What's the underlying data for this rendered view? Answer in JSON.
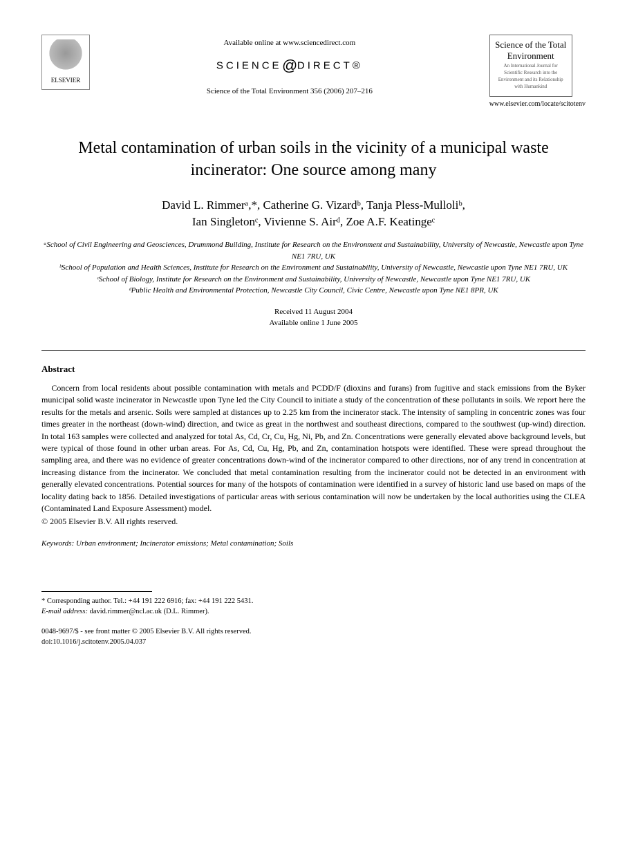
{
  "header": {
    "publisher_name": "ELSEVIER",
    "available_online": "Available online at www.sciencedirect.com",
    "sciencedirect_prefix": "SCIENCE",
    "sciencedirect_suffix": "DIRECT®",
    "journal_reference": "Science of the Total Environment 356 (2006) 207–216",
    "journal_cover_title": "Science of the Total Environment",
    "journal_cover_subtitle": "An International Journal for Scientific Research into the Environment and its Relationship with Humankind",
    "journal_url": "www.elsevier.com/locate/scitotenv"
  },
  "title": "Metal contamination of urban soils in the vicinity of a municipal waste incinerator: One source among many",
  "authors_line1": "David L. Rimmerᵃ,*, Catherine G. Vizardᵇ, Tanja Pless-Mulloliᵇ,",
  "authors_line2": "Ian Singletonᶜ, Vivienne S. Airᵈ, Zoe A.F. Keatingeᶜ",
  "affiliations": {
    "a": "ᵃSchool of Civil Engineering and Geosciences, Drummond Building, Institute for Research on the Environment and Sustainability, University of Newcastle, Newcastle upon Tyne NE1 7RU, UK",
    "b": "ᵇSchool of Population and Health Sciences, Institute for Research on the Environment and Sustainability, University of Newcastle, Newcastle upon Tyne NE1 7RU, UK",
    "c": "ᶜSchool of Biology, Institute for Research on the Environment and Sustainability, University of Newcastle, Newcastle upon Tyne NE1 7RU, UK",
    "d": "ᵈPublic Health and Environmental Protection, Newcastle City Council, Civic Centre, Newcastle upon Tyne NE1 8PR, UK"
  },
  "dates": {
    "received": "Received 11 August 2004",
    "online": "Available online 1 June 2005"
  },
  "abstract": {
    "heading": "Abstract",
    "text": "Concern from local residents about possible contamination with metals and PCDD/F (dioxins and furans) from fugitive and stack emissions from the Byker municipal solid waste incinerator in Newcastle upon Tyne led the City Council to initiate a study of the concentration of these pollutants in soils. We report here the results for the metals and arsenic. Soils were sampled at distances up to 2.25 km from the incinerator stack. The intensity of sampling in concentric zones was four times greater in the northeast (down-wind) direction, and twice as great in the northwest and southeast directions, compared to the southwest (up-wind) direction. In total 163 samples were collected and analyzed for total As, Cd, Cr, Cu, Hg, Ni, Pb, and Zn. Concentrations were generally elevated above background levels, but were typical of those found in other urban areas. For As, Cd, Cu, Hg, Pb, and Zn, contamination hotspots were identified. These were spread throughout the sampling area, and there was no evidence of greater concentrations down-wind of the incinerator compared to other directions, nor of any trend in concentration at increasing distance from the incinerator. We concluded that metal contamination resulting from the incinerator could not be detected in an environment with generally elevated concentrations. Potential sources for many of the hotspots of contamination were identified in a survey of historic land use based on maps of the locality dating back to 1856. Detailed investigations of particular areas with serious contamination will now be undertaken by the local authorities using the CLEA (Contaminated Land Exposure Assessment) model.",
    "copyright": "© 2005 Elsevier B.V. All rights reserved."
  },
  "keywords": {
    "label": "Keywords:",
    "text": " Urban environment; Incinerator emissions; Metal contamination; Soils"
  },
  "corresponding": {
    "line": "* Corresponding author. Tel.: +44 191 222 6916; fax: +44 191 222 5431.",
    "email_label": "E-mail address:",
    "email": " david.rimmer@ncl.ac.uk (D.L. Rimmer)."
  },
  "footer": {
    "issn_line": "0048-9697/$ - see front matter © 2005 Elsevier B.V. All rights reserved.",
    "doi_line": "doi:10.1016/j.scitotenv.2005.04.037"
  }
}
